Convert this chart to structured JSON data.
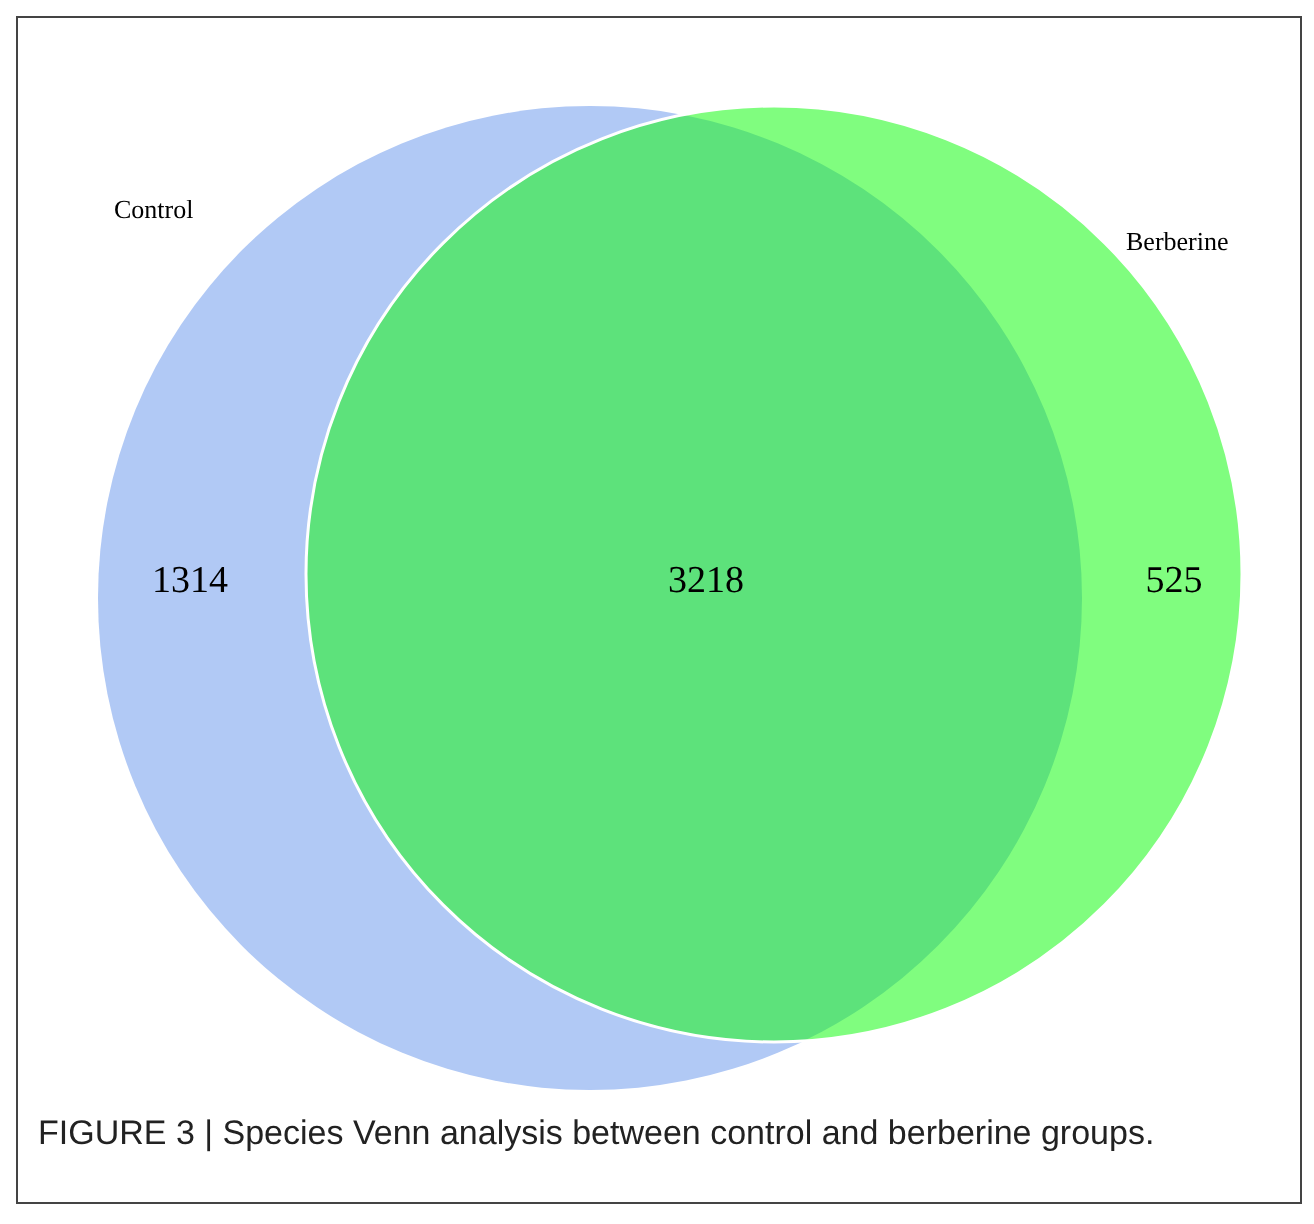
{
  "chart_data": {
    "type": "other",
    "categories": [
      "Control",
      null,
      "Berberine"
    ],
    "values": [
      1314,
      3218,
      525
    ],
    "data_labels": true,
    "colors": [
      "#b1c9f5",
      "#5de27b",
      "#80fd7f"
    ],
    "annotations": [
      "FIGURE 3 | Species Venn analysis between control and berberine groups."
    ]
  }
}
